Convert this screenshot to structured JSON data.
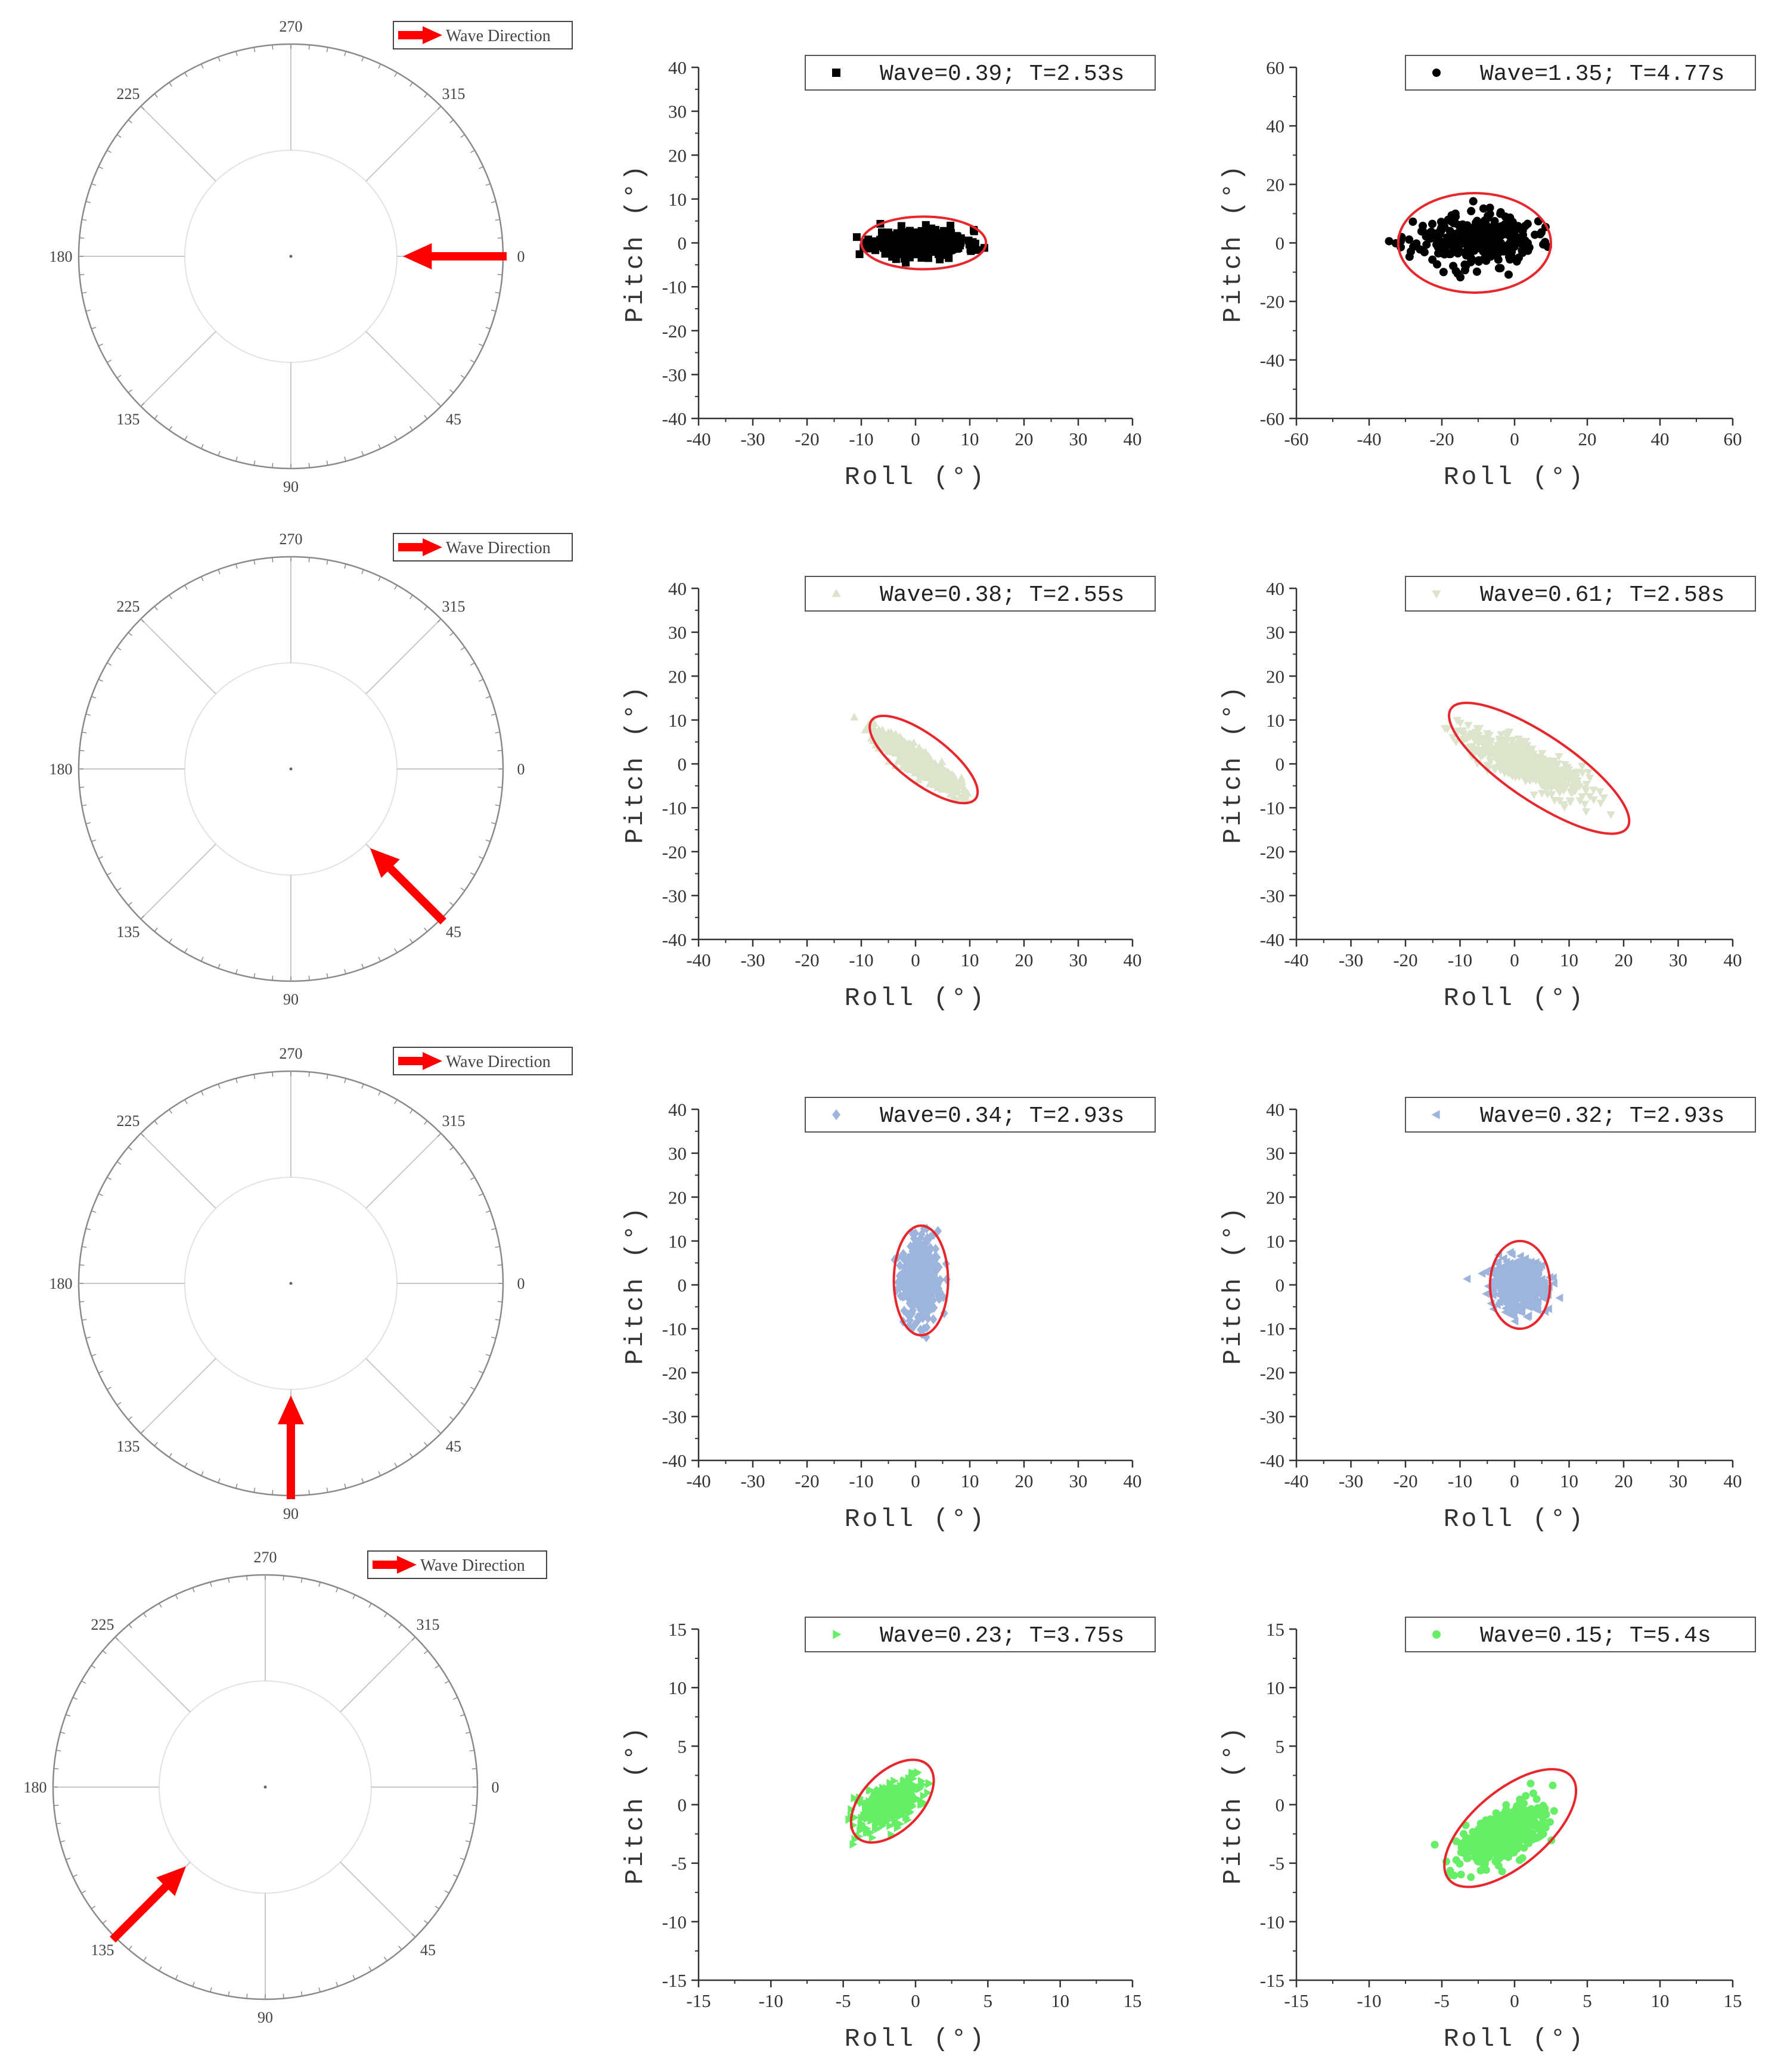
{
  "colors": {
    "arrow": "#ff0000",
    "ellipse": "#e8262b",
    "axis": "#333333",
    "polar_grid": "#c8c8c8",
    "polar_inner": "#e2e2e2",
    "polar_outer": "#8a8a8a"
  },
  "polar": {
    "legend_label": "Wave Direction",
    "angle_labels": [
      "0",
      "45",
      "90",
      "135",
      "180",
      "225",
      "270",
      "315"
    ]
  },
  "rows": [
    {
      "wave_direction_deg": 0
    },
    {
      "wave_direction_deg": 45
    },
    {
      "wave_direction_deg": 90
    },
    {
      "wave_direction_deg": 135
    }
  ],
  "chart_data": [
    {
      "type": "scatter",
      "xlabel": "Roll (°)",
      "ylabel": "Pitch (°)",
      "xlim": [
        -40,
        40
      ],
      "ylim": [
        -40,
        40
      ],
      "xticks": [
        -40,
        -30,
        -20,
        -10,
        0,
        10,
        20,
        30,
        40
      ],
      "yticks": [
        -40,
        -30,
        -20,
        -10,
        0,
        10,
        20,
        30,
        40
      ],
      "series": [
        {
          "name": "Wave=0.39; T=2.53s",
          "marker": "square",
          "color": "#000000",
          "cloud": {
            "cx": 1,
            "cy": 0,
            "sx": 4.2,
            "sy": 1.5,
            "rho": 0,
            "n": 420,
            "seed": 11
          }
        }
      ],
      "ellipse": {
        "cx": 1.5,
        "cy": 0,
        "rx": 11.5,
        "ry": 6,
        "angle": 0
      }
    },
    {
      "type": "scatter",
      "xlabel": "Roll (°)",
      "ylabel": "Pitch (°)",
      "xlim": [
        -60,
        60
      ],
      "ylim": [
        -60,
        60
      ],
      "xticks": [
        -60,
        -40,
        -20,
        0,
        20,
        40,
        60
      ],
      "yticks": [
        -60,
        -40,
        -20,
        0,
        20,
        40,
        60
      ],
      "series": [
        {
          "name": "Wave=1.35; T=4.77s",
          "marker": "circle",
          "color": "#000000",
          "cloud": {
            "cx": -11,
            "cy": 1,
            "sx": 8,
            "sy": 4.3,
            "rho": 0,
            "n": 330,
            "seed": 23
          }
        }
      ],
      "ellipse": {
        "cx": -11,
        "cy": 0,
        "rx": 21,
        "ry": 17,
        "angle": 0
      }
    },
    {
      "type": "scatter",
      "xlabel": "Roll (°)",
      "ylabel": "Pitch (°)",
      "xlim": [
        -40,
        40
      ],
      "ylim": [
        -40,
        40
      ],
      "xticks": [
        -40,
        -30,
        -20,
        -10,
        0,
        10,
        20,
        30,
        40
      ],
      "yticks": [
        -40,
        -30,
        -20,
        -10,
        0,
        10,
        20,
        30,
        40
      ],
      "series": [
        {
          "name": "Wave=0.38; T=2.55s",
          "marker": "triangle-up",
          "color": "#dde4cc",
          "cloud": {
            "cx": 0.5,
            "cy": 0.5,
            "sx": 3.8,
            "sy": 3.4,
            "rho": -0.9,
            "n": 520,
            "seed": 37
          }
        }
      ],
      "ellipse": {
        "cx": 1.5,
        "cy": 1,
        "rx": 12,
        "ry": 5.5,
        "angle": -37
      }
    },
    {
      "type": "scatter",
      "xlabel": "Roll (°)",
      "ylabel": "Pitch (°)",
      "xlim": [
        -40,
        40
      ],
      "ylim": [
        -40,
        40
      ],
      "xticks": [
        -40,
        -30,
        -20,
        -10,
        0,
        10,
        20,
        30,
        40
      ],
      "yticks": [
        -40,
        -30,
        -20,
        -10,
        0,
        10,
        20,
        30,
        40
      ],
      "series": [
        {
          "name": "Wave=0.61; T=2.58s",
          "marker": "triangle-down",
          "color": "#dde4cc",
          "cloud": {
            "cx": 2,
            "cy": 0,
            "sx": 5.5,
            "sy": 3.6,
            "rho": -0.8,
            "n": 620,
            "seed": 41
          }
        }
      ],
      "ellipse": {
        "cx": 4.5,
        "cy": -1,
        "rx": 19.5,
        "ry": 7.5,
        "angle": -34
      }
    },
    {
      "type": "scatter",
      "xlabel": "Roll (°)",
      "ylabel": "Pitch (°)",
      "xlim": [
        -40,
        40
      ],
      "ylim": [
        -40,
        40
      ],
      "xticks": [
        -40,
        -30,
        -20,
        -10,
        0,
        10,
        20,
        30,
        40
      ],
      "yticks": [
        -40,
        -30,
        -20,
        -10,
        0,
        10,
        20,
        30,
        40
      ],
      "series": [
        {
          "name": "Wave=0.34; T=2.93s",
          "marker": "diamond",
          "color": "#9db5dc",
          "cloud": {
            "cx": 1,
            "cy": 1,
            "sx": 1.7,
            "sy": 4.3,
            "rho": 0,
            "n": 560,
            "seed": 53
          }
        }
      ],
      "ellipse": {
        "cx": 1,
        "cy": 1,
        "rx": 5,
        "ry": 12.5,
        "angle": 0
      }
    },
    {
      "type": "scatter",
      "xlabel": "Roll (°)",
      "ylabel": "Pitch (°)",
      "xlim": [
        -40,
        40
      ],
      "ylim": [
        -40,
        40
      ],
      "xticks": [
        -40,
        -30,
        -20,
        -10,
        0,
        10,
        20,
        30,
        40
      ],
      "yticks": [
        -40,
        -30,
        -20,
        -10,
        0,
        10,
        20,
        30,
        40
      ],
      "series": [
        {
          "name": "Wave=0.32; T=2.93s",
          "marker": "triangle-left",
          "color": "#9db5dc",
          "cloud": {
            "cx": 1,
            "cy": 0,
            "sx": 2.4,
            "sy": 2.8,
            "rho": 0,
            "n": 540,
            "seed": 61
          }
        }
      ],
      "ellipse": {
        "cx": 1,
        "cy": 0,
        "rx": 5.5,
        "ry": 10,
        "angle": 0
      }
    },
    {
      "type": "scatter",
      "xlabel": "Roll (°)",
      "ylabel": "Pitch (°)",
      "xlim": [
        -15,
        15
      ],
      "ylim": [
        -15,
        15
      ],
      "xticks": [
        -15,
        -10,
        -5,
        0,
        5,
        10,
        15
      ],
      "yticks": [
        -15,
        -10,
        -5,
        0,
        5,
        10,
        15
      ],
      "series": [
        {
          "name": "Wave=0.23; T=3.75s",
          "marker": "triangle-right",
          "color": "#66ee66",
          "cloud": {
            "cx": -1.8,
            "cy": 0,
            "sx": 1.0,
            "sy": 0.95,
            "rho": 0.5,
            "n": 520,
            "seed": 71
          }
        }
      ],
      "ellipse": {
        "cx": -1.6,
        "cy": 0.3,
        "rx": 3.5,
        "ry": 2.5,
        "angle": 45
      }
    },
    {
      "type": "scatter",
      "xlabel": "Roll (°)",
      "ylabel": "Pitch (°)",
      "xlim": [
        -15,
        15
      ],
      "ylim": [
        -15,
        15
      ],
      "xticks": [
        -15,
        -10,
        -5,
        0,
        5,
        10,
        15
      ],
      "yticks": [
        -15,
        -10,
        -5,
        0,
        5,
        10,
        15
      ],
      "series": [
        {
          "name": "Wave=0.15; T=5.4s",
          "marker": "circle",
          "color": "#66ee66",
          "cloud": {
            "cx": -0.8,
            "cy": -2.5,
            "sx": 1.4,
            "sy": 1.2,
            "rho": 0.55,
            "n": 560,
            "seed": 83
          }
        }
      ],
      "ellipse": {
        "cx": -0.3,
        "cy": -2,
        "rx": 5.5,
        "ry": 3.2,
        "angle": 40
      }
    }
  ]
}
